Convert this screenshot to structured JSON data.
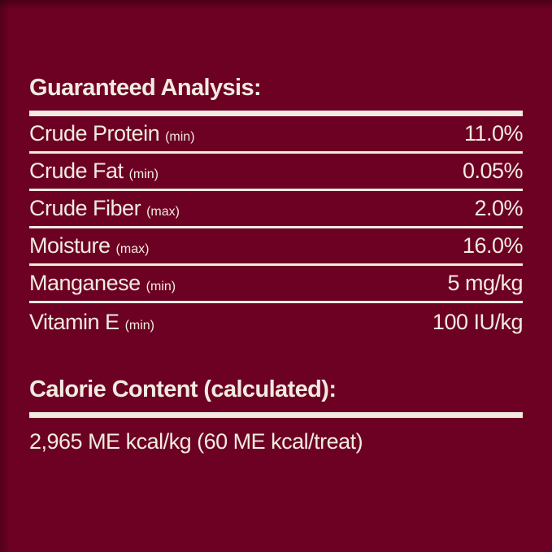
{
  "colors": {
    "background": "#6d0123",
    "text": "#f1ebe1",
    "line": "#f1ebe1"
  },
  "guaranteed_analysis": {
    "title": "Guaranteed Analysis:",
    "rows": [
      {
        "label": "Crude Protein",
        "qualifier": "(min)",
        "value": "11.0%"
      },
      {
        "label": "Crude Fat",
        "qualifier": "(min)",
        "value": "0.05%"
      },
      {
        "label": "Crude Fiber",
        "qualifier": "(max)",
        "value": "2.0%"
      },
      {
        "label": "Moisture",
        "qualifier": "(max)",
        "value": "16.0%"
      },
      {
        "label": "Manganese",
        "qualifier": "(min)",
        "value": "5 mg/kg"
      },
      {
        "label": "Vitamin E",
        "qualifier": "(min)",
        "value": "100 IU/kg"
      }
    ]
  },
  "calorie_content": {
    "title": "Calorie Content (calculated):",
    "value": "2,965 ME kcal/kg (60 ME kcal/treat)"
  }
}
